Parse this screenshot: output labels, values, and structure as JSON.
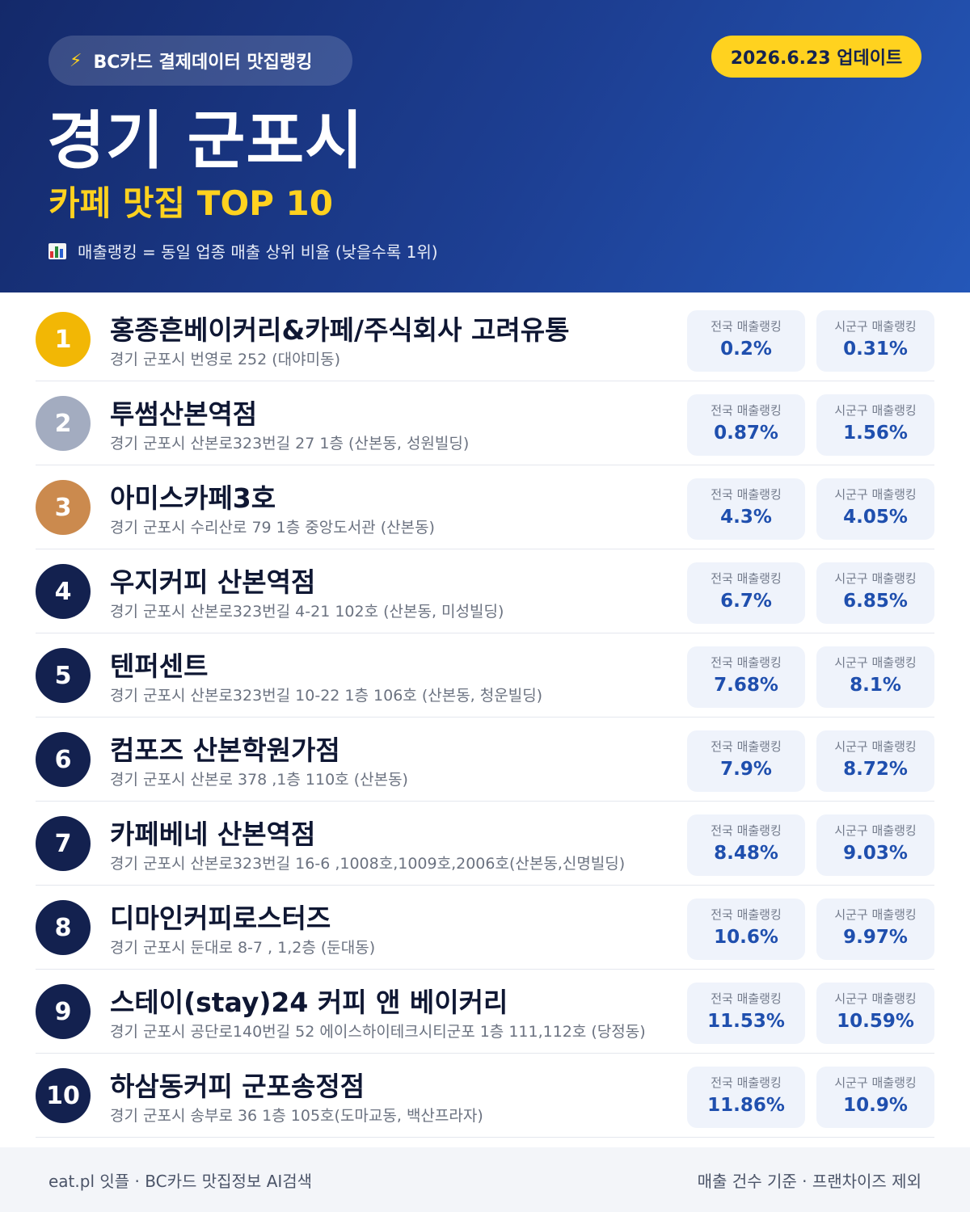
{
  "header": {
    "source_badge": "BC카드 결제데이터 맛집랭킹",
    "update_badge": "2026.6.23 업데이트",
    "city_title": "경기 군포시",
    "sub_title": "카페 맛집 TOP 10",
    "note": "매출랭킹 = 동일 업종 매출 상위 비율 (낮을수록 1위)",
    "bolt_icon": "lightning-icon",
    "note_icon": "bar-chart-icon",
    "accent_color": "#ffd21f"
  },
  "labels": {
    "national": "전국 매출랭킹",
    "local": "시군구 매출랭킹"
  },
  "items": [
    {
      "rank": "1",
      "name": "홍종흔베이커리&카페/주식회사 고려유통",
      "address": "경기 군포시 번영로 252 (대야미동)",
      "national": "0.2%",
      "local": "0.31%"
    },
    {
      "rank": "2",
      "name": "투썸산본역점",
      "address": "경기 군포시 산본로323번길 27 1층 (산본동, 성원빌딩)",
      "national": "0.87%",
      "local": "1.56%"
    },
    {
      "rank": "3",
      "name": "아미스카페3호",
      "address": "경기 군포시 수리산로 79 1층 중앙도서관 (산본동)",
      "national": "4.3%",
      "local": "4.05%"
    },
    {
      "rank": "4",
      "name": "우지커피 산본역점",
      "address": "경기 군포시 산본로323번길 4-21 102호 (산본동, 미성빌딩)",
      "national": "6.7%",
      "local": "6.85%"
    },
    {
      "rank": "5",
      "name": "텐퍼센트",
      "address": "경기 군포시 산본로323번길 10-22 1층 106호 (산본동, 청운빌딩)",
      "national": "7.68%",
      "local": "8.1%"
    },
    {
      "rank": "6",
      "name": "컴포즈 산본학원가점",
      "address": "경기 군포시 산본로 378 ,1층 110호 (산본동)",
      "national": "7.9%",
      "local": "8.72%"
    },
    {
      "rank": "7",
      "name": "카페베네 산본역점",
      "address": "경기 군포시 산본로323번길 16-6 ,1008호,1009호,2006호(산본동,신명빌딩)",
      "national": "8.48%",
      "local": "9.03%"
    },
    {
      "rank": "8",
      "name": "디마인커피로스터즈",
      "address": "경기 군포시 둔대로 8-7 , 1,2층 (둔대동)",
      "national": "10.6%",
      "local": "9.97%"
    },
    {
      "rank": "9",
      "name": "스테이(stay)24 커피 앤 베이커리",
      "address": "경기 군포시 공단로140번길 52 에이스하이테크시티군포 1층 111,112호 (당정동)",
      "national": "11.53%",
      "local": "10.59%"
    },
    {
      "rank": "10",
      "name": "하삼동커피 군포송정점",
      "address": "경기 군포시 송부로 36 1층 105호(도마교동, 백산프라자)",
      "national": "11.86%",
      "local": "10.9%"
    }
  ],
  "footer": {
    "left": "eat.pl 잇플 · BC카드 맛집정보 AI검색",
    "right": "매출 건수 기준 · 프랜차이즈 제외"
  }
}
